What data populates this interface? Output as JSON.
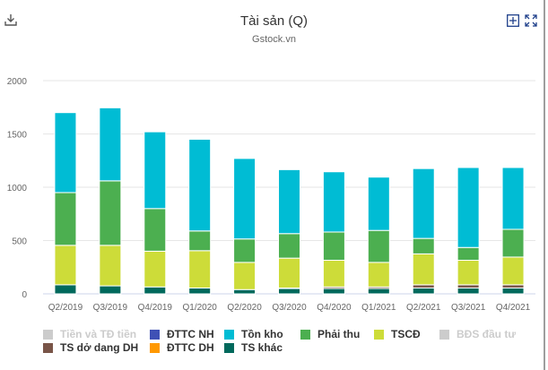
{
  "header": {
    "title": "Tài sản (Q)",
    "subtitle": "Gstock.vn",
    "icons": [
      "download-icon",
      "add-box-icon",
      "fullscreen-icon"
    ]
  },
  "chart_data": {
    "type": "bar",
    "stacked": true,
    "title": "Tài sản (Q)",
    "subtitle": "Gstock.vn",
    "categories": [
      "Q2/2019",
      "Q3/2019",
      "Q4/2019",
      "Q1/2020",
      "Q2/2020",
      "Q3/2020",
      "Q4/2020",
      "Q1/2021",
      "Q2/2021",
      "Q3/2021",
      "Q4/2021"
    ],
    "ylim": [
      0,
      2000
    ],
    "yticks": [
      "0",
      "500",
      "1000",
      "1500",
      "2000"
    ],
    "grid": true,
    "legend_position": "bottom",
    "series": [
      {
        "name": "Tiền và TĐ tiền",
        "color": "#cccccc",
        "visible": false,
        "values": null
      },
      {
        "name": "ĐTTC NH",
        "color": "#3f51b5",
        "visible": true,
        "values": [
          0,
          0,
          0,
          0,
          0,
          0,
          0,
          0,
          0,
          0,
          0
        ]
      },
      {
        "name": "Tồn kho",
        "color": "#00bcd4",
        "visible": true,
        "values": [
          750,
          685,
          720,
          860,
          755,
          600,
          565,
          500,
          655,
          750,
          580
        ]
      },
      {
        "name": "Phải thu",
        "color": "#4caf50",
        "visible": true,
        "values": [
          495,
          605,
          400,
          185,
          220,
          230,
          265,
          300,
          145,
          120,
          260
        ]
      },
      {
        "name": "TSCĐ",
        "color": "#cddc39",
        "visible": true,
        "values": [
          370,
          380,
          335,
          350,
          255,
          280,
          250,
          230,
          290,
          230,
          260
        ]
      },
      {
        "name": "BĐS đầu tư",
        "color": "#cccccc",
        "visible": false,
        "values": null
      },
      {
        "name": "TS dở dang DH",
        "color": "#795548",
        "visible": true,
        "values": [
          0,
          0,
          0,
          0,
          0,
          5,
          15,
          15,
          30,
          30,
          30
        ]
      },
      {
        "name": "ĐTTC DH",
        "color": "#ff9800",
        "visible": true,
        "values": [
          0,
          0,
          0,
          0,
          0,
          0,
          0,
          0,
          0,
          0,
          0
        ]
      },
      {
        "name": "TS khác",
        "color": "#00695c",
        "visible": true,
        "values": [
          85,
          75,
          65,
          55,
          40,
          50,
          50,
          50,
          55,
          55,
          55
        ]
      }
    ],
    "stack_order_bottom_up": [
      "TS khác",
      "ĐTTC DH",
      "TS dở dang DH",
      "TSCĐ",
      "Phải thu",
      "Tồn kho",
      "ĐTTC NH"
    ]
  }
}
